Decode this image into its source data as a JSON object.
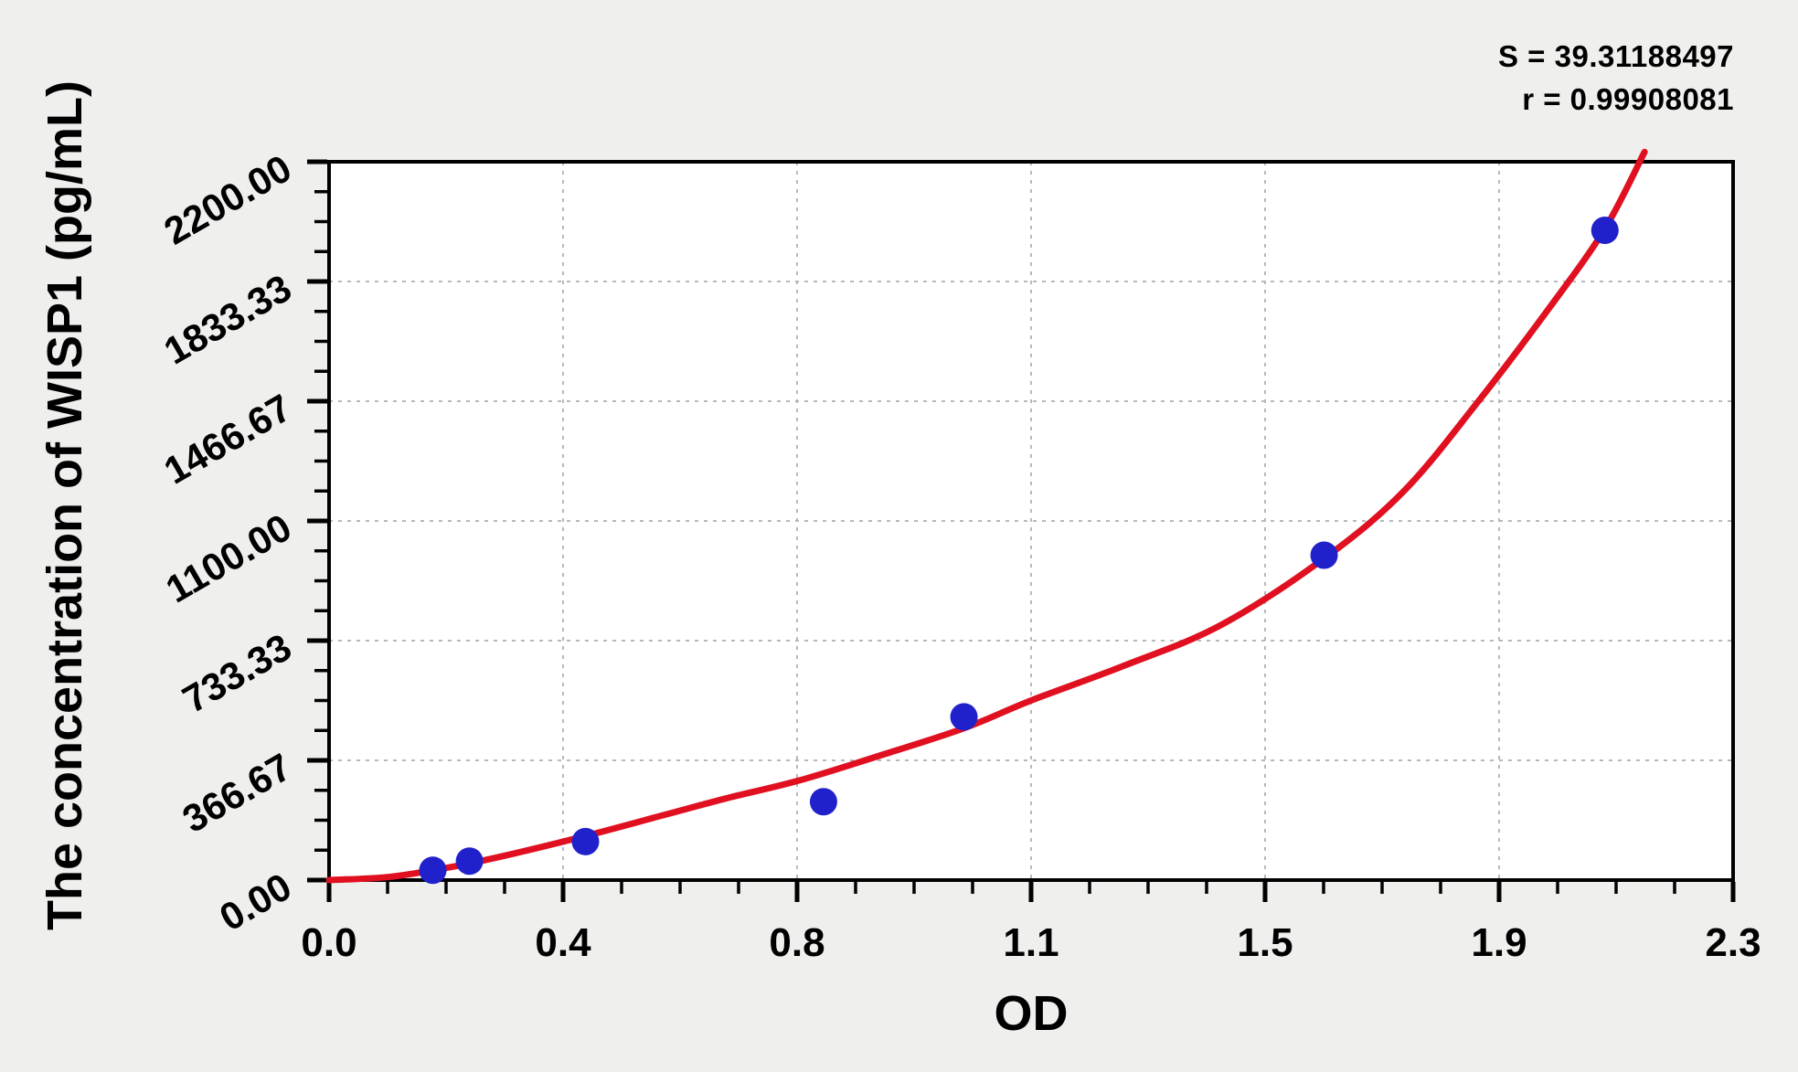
{
  "chart_data": {
    "type": "scatter",
    "title": "",
    "xlabel": "OD",
    "ylabel": "The concentration of WISP1 (pg/mL)",
    "xlim": [
      0,
      2.3
    ],
    "ylim": [
      0,
      2200
    ],
    "grid": "dashed-major",
    "legend_position": "none",
    "minor_ticks_per_interval": 3,
    "x_ticks": {
      "values": [
        0,
        0.38333,
        0.76667,
        1.15,
        1.53333,
        1.91667,
        2.3
      ],
      "labels": [
        "0.0",
        "0.4",
        "0.8",
        "1.1",
        "1.5",
        "1.9",
        "2.3"
      ]
    },
    "y_ticks": {
      "values": [
        0,
        366.67,
        733.33,
        1100,
        1466.67,
        1833.33,
        2200
      ],
      "labels": [
        "0.00",
        "366.67",
        "733.33",
        "1100.00",
        "1466.67",
        "1833.33",
        "2200.00"
      ]
    },
    "annotations": [
      "S = 39.31188497",
      "r = 0.99908081"
    ],
    "stats": {
      "S": 39.31188497,
      "r": 0.99908081
    },
    "series": [
      {
        "name": "standard-points",
        "type": "scatter",
        "points": [
          {
            "od": 0.17,
            "conc": 30
          },
          {
            "od": 0.23,
            "conc": 58
          },
          {
            "od": 0.42,
            "conc": 118
          },
          {
            "od": 0.81,
            "conc": 240
          },
          {
            "od": 1.04,
            "conc": 500
          },
          {
            "od": 1.63,
            "conc": 995
          },
          {
            "od": 2.09,
            "conc": 1990
          }
        ]
      },
      {
        "name": "fitted-curve",
        "type": "line",
        "points": [
          [
            0.0,
            0
          ],
          [
            0.1,
            10
          ],
          [
            0.2,
            40
          ],
          [
            0.3,
            80
          ],
          [
            0.42,
            135
          ],
          [
            0.55,
            200
          ],
          [
            0.65,
            250
          ],
          [
            0.77,
            305
          ],
          [
            0.9,
            380
          ],
          [
            1.04,
            465
          ],
          [
            1.15,
            550
          ],
          [
            1.3,
            655
          ],
          [
            1.46,
            780
          ],
          [
            1.63,
            985
          ],
          [
            1.76,
            1190
          ],
          [
            1.88,
            1460
          ],
          [
            2.0,
            1755
          ],
          [
            2.09,
            1995
          ],
          [
            2.155,
            2230
          ]
        ]
      }
    ],
    "colors": {
      "background": "#efefed",
      "plot_background": "#ffffff",
      "axis": "#000000",
      "grid": "#b8b8b8",
      "curve": "#e01020",
      "point": "#2121cc",
      "text": "#000000"
    }
  }
}
